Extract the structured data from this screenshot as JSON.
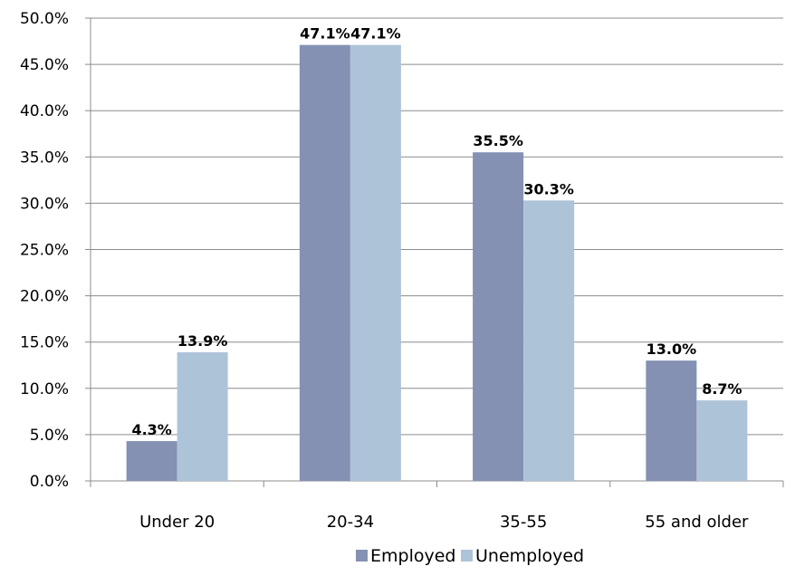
{
  "chart_data": {
    "type": "bar",
    "categories": [
      "Under 20",
      "20-34",
      "35-55",
      "55 and older"
    ],
    "series": [
      {
        "name": "Employed",
        "values": [
          4.3,
          47.1,
          35.5,
          13.0
        ],
        "color": "#8491B3"
      },
      {
        "name": "Unemployed",
        "values": [
          13.9,
          47.1,
          30.3,
          8.7
        ],
        "color": "#ADC3D8"
      }
    ],
    "data_labels": [
      [
        "4.3%",
        "47.1%",
        "35.5%",
        "13.0%"
      ],
      [
        "13.9%",
        "47.1%",
        "30.3%",
        "8.7%"
      ]
    ],
    "y_ticks": [
      "0.0%",
      "5.0%",
      "10.0%",
      "15.0%",
      "20.0%",
      "25.0%",
      "30.0%",
      "35.0%",
      "40.0%",
      "45.0%",
      "50.0%"
    ],
    "ylim": [
      0,
      50
    ],
    "y_step": 5,
    "grid": true,
    "legend_position": "bottom",
    "title": "",
    "xlabel": "",
    "ylabel": ""
  }
}
